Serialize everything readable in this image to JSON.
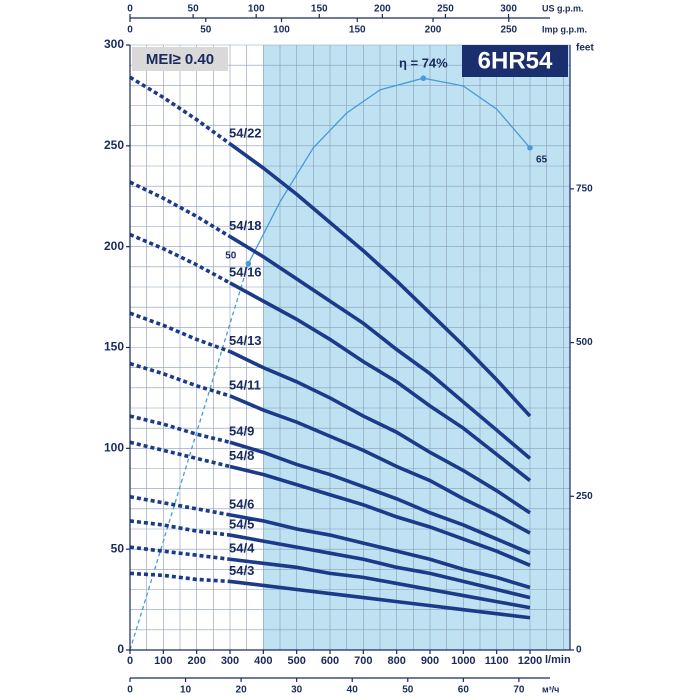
{
  "chart_data": {
    "type": "line",
    "title": "6HR54",
    "badge": "MEI≥ 0.40",
    "x_label": "l/min",
    "y2_label": "feet",
    "x": [
      0,
      100,
      200,
      300,
      400,
      500,
      600,
      700,
      800,
      900,
      1000,
      1100,
      1200
    ],
    "xlim": [
      0,
      1320
    ],
    "xticks": [
      0,
      100,
      200,
      300,
      400,
      500,
      600,
      700,
      800,
      900,
      1000,
      1100,
      1200
    ],
    "ylim": [
      0,
      300
    ],
    "yticks": [
      0,
      50,
      100,
      150,
      200,
      250,
      300
    ],
    "y2lim": [
      0,
      984
    ],
    "y2ticks": [
      0,
      250,
      500,
      750
    ],
    "xgrid": [
      0,
      50,
      100,
      150,
      200,
      250,
      300,
      350,
      400,
      450,
      500,
      550,
      600,
      650,
      700,
      750,
      800,
      850,
      900,
      950,
      1000,
      1050,
      1100,
      1150,
      1200,
      1250,
      1300
    ],
    "ygrid": [
      0,
      10,
      20,
      30,
      40,
      50,
      60,
      70,
      80,
      90,
      100,
      110,
      120,
      130,
      140,
      150,
      160,
      170,
      180,
      190,
      200,
      210,
      220,
      230,
      240,
      250,
      260,
      270,
      280,
      290,
      300
    ],
    "grid": true,
    "shade_from": 400,
    "shade_color": "#bfe2f2",
    "solid_from": 300,
    "extra_x_axes": [
      {
        "label": "US g.p.m.",
        "lim": [
          0,
          348.7
        ],
        "ticks": [
          0,
          50,
          100,
          150,
          200,
          250,
          300
        ],
        "position": "top"
      },
      {
        "label": "Imp g.p.m.",
        "lim": [
          0,
          290.4
        ],
        "ticks": [
          0,
          50,
          100,
          150,
          200,
          250
        ],
        "position": "top-inner"
      },
      {
        "label": "м³/ч",
        "lim": [
          0,
          79.2
        ],
        "ticks": [
          0,
          10,
          20,
          30,
          40,
          50,
          60,
          70
        ],
        "position": "bottom"
      }
    ],
    "series": [
      {
        "name": "54/22",
        "color": "#1b3a8a",
        "values": [
          284,
          274,
          263,
          251,
          239,
          226,
          212,
          198,
          183,
          167,
          151,
          134,
          116
        ]
      },
      {
        "name": "54/18",
        "color": "#1b3a8a",
        "values": [
          232,
          224,
          215,
          205,
          195,
          184,
          173,
          162,
          149,
          137,
          123,
          109,
          95
        ]
      },
      {
        "name": "54/16",
        "color": "#1b3a8a",
        "values": [
          206,
          199,
          191,
          182,
          173,
          164,
          154,
          143,
          133,
          121,
          110,
          97,
          84
        ]
      },
      {
        "name": "54/13",
        "color": "#1b3a8a",
        "values": [
          167,
          161,
          154,
          148,
          140,
          133,
          125,
          116,
          108,
          98,
          89,
          79,
          68
        ]
      },
      {
        "name": "54/11",
        "color": "#1b3a8a",
        "values": [
          142,
          137,
          131,
          126,
          119,
          113,
          106,
          99,
          91,
          84,
          75,
          67,
          58
        ]
      },
      {
        "name": "54/9",
        "color": "#1b3a8a",
        "values": [
          116,
          112,
          107,
          103,
          98,
          92,
          87,
          81,
          75,
          68,
          62,
          55,
          48
        ]
      },
      {
        "name": "54/8",
        "color": "#1b3a8a",
        "values": [
          103,
          99,
          95,
          91,
          87,
          82,
          77,
          72,
          66,
          61,
          55,
          49,
          42
        ]
      },
      {
        "name": "54/6",
        "color": "#1b3a8a",
        "values": [
          76,
          73,
          70,
          67,
          64,
          60,
          57,
          53,
          49,
          45,
          40,
          36,
          31
        ]
      },
      {
        "name": "54/5",
        "color": "#1b3a8a",
        "values": [
          64,
          62,
          59,
          57,
          54,
          51,
          48,
          45,
          41,
          38,
          34,
          30,
          26
        ]
      },
      {
        "name": "54/4",
        "color": "#1b3a8a",
        "values": [
          51,
          49,
          47,
          45,
          43,
          41,
          38,
          36,
          33,
          30,
          27,
          24,
          21
        ]
      },
      {
        "name": "54/3",
        "color": "#1b3a8a",
        "values": [
          38,
          37,
          35,
          34,
          32,
          30,
          28,
          26,
          24,
          22,
          20,
          18,
          16
        ]
      }
    ],
    "efficiency": {
      "color": "#4a9ad8",
      "ylim": [
        0,
        78.3
      ],
      "dashed_until": 355,
      "x": [
        0,
        355,
        450,
        550,
        650,
        750,
        880,
        1000,
        1100,
        1200
      ],
      "values": [
        0,
        50,
        58,
        65,
        69.5,
        72.5,
        74,
        73,
        70,
        65
      ],
      "annotations": [
        {
          "x": 355,
          "value": 50,
          "label": "50"
        },
        {
          "x": 880,
          "value": 74,
          "label": "η = 74%"
        },
        {
          "x": 1200,
          "value": 65,
          "label": "65"
        }
      ]
    }
  }
}
